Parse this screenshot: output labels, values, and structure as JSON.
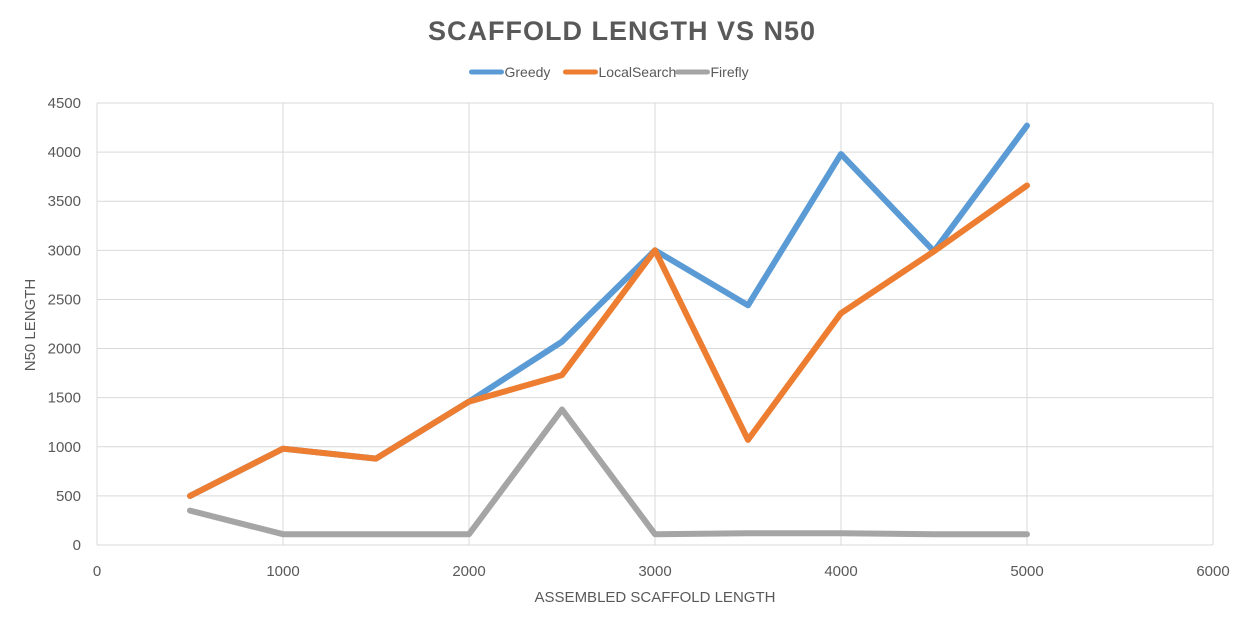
{
  "chart_data": {
    "type": "line",
    "title": "SCAFFOLD LENGTH VS N50",
    "xlabel": "ASSEMBLED SCAFFOLD LENGTH",
    "ylabel": "N50 LENGTH",
    "xlim": [
      0,
      6000
    ],
    "ylim": [
      0,
      4500
    ],
    "xticks": [
      0,
      1000,
      2000,
      3000,
      4000,
      5000,
      6000
    ],
    "yticks": [
      0,
      500,
      1000,
      1500,
      2000,
      2500,
      3000,
      3500,
      4000,
      4500
    ],
    "grid": true,
    "legend_position": "top-center",
    "series": [
      {
        "name": "Greedy",
        "color": "#5b9bd5",
        "x": [
          500,
          1000,
          1500,
          2000,
          2500,
          3000,
          3500,
          4000,
          4500,
          5000
        ],
        "y": [
          500,
          980,
          880,
          1460,
          2070,
          3000,
          2440,
          3980,
          2990,
          4270
        ]
      },
      {
        "name": "LocalSearch",
        "color": "#ed7d31",
        "x": [
          500,
          1000,
          1500,
          2000,
          2500,
          3000,
          3500,
          4000,
          4500,
          5000
        ],
        "y": [
          500,
          980,
          880,
          1460,
          1730,
          3000,
          1070,
          2360,
          2990,
          3660
        ]
      },
      {
        "name": "Firefly",
        "color": "#a5a5a5",
        "x": [
          500,
          1000,
          1500,
          2000,
          2500,
          3000,
          3500,
          4000,
          4500,
          5000
        ],
        "y": [
          350,
          110,
          110,
          110,
          1380,
          110,
          120,
          120,
          110,
          110
        ]
      }
    ]
  }
}
